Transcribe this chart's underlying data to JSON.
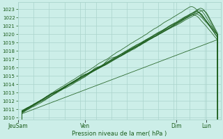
{
  "title": "",
  "xlabel": "Pression niveau de la mer( hPa )",
  "ylim": [
    1009.8,
    1023.8
  ],
  "yticks": [
    1010,
    1011,
    1012,
    1013,
    1014,
    1015,
    1016,
    1017,
    1018,
    1019,
    1020,
    1021,
    1022,
    1023
  ],
  "xtick_labels": [
    "JeuSam",
    "Ven",
    "Dim",
    "Lun"
  ],
  "xtick_positions": [
    0.0,
    0.33,
    0.78,
    0.93
  ],
  "bg_color": "#cceee8",
  "grid_color": "#aad4cc",
  "line_color": "#1a5c1a",
  "text_color": "#1a5c1a",
  "n_points": 200
}
